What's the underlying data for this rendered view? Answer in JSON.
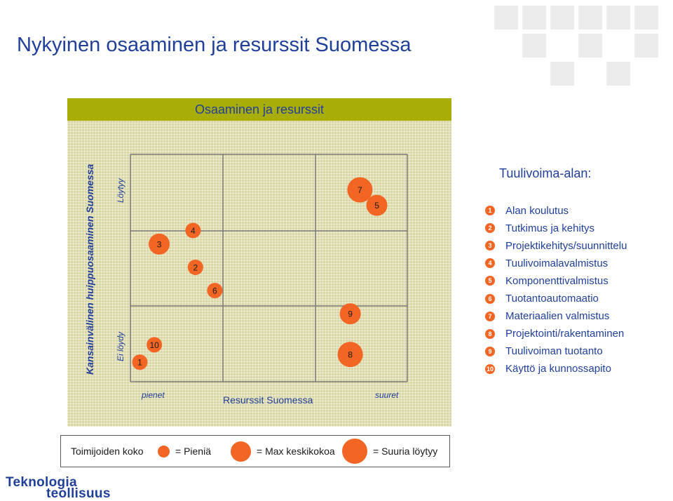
{
  "page": {
    "title": "Nykyinen osaaminen ja resurssit Suomessa"
  },
  "chart_data": {
    "type": "scatter",
    "title": "Osaaminen ja resurssit",
    "xlabel": "Resurssit Suomessa",
    "ylabel": "Kansainvälinen huippuosaaminen  Suomessa",
    "x_tick_labels": {
      "low": "pienet",
      "high": "suuret"
    },
    "y_tick_labels": {
      "low": "Ei löydy",
      "high": "Löytyy"
    },
    "xlim": [
      0,
      10
    ],
    "ylim": [
      0,
      10
    ],
    "grid": "3x3 quadrants",
    "points": [
      {
        "id": "1",
        "x": 0.1,
        "y": 0.5,
        "size": "small"
      },
      {
        "id": "2",
        "x": 2.4,
        "y": 5.4,
        "size": "small"
      },
      {
        "id": "3",
        "x": 0.9,
        "y": 6.6,
        "size": "medium"
      },
      {
        "id": "4",
        "x": 2.3,
        "y": 7.3,
        "size": "small"
      },
      {
        "id": "5",
        "x": 9.9,
        "y": 8.6,
        "size": "medium"
      },
      {
        "id": "6",
        "x": 3.2,
        "y": 4.2,
        "size": "small"
      },
      {
        "id": "7",
        "x": 9.2,
        "y": 9.4,
        "size": "large"
      },
      {
        "id": "8",
        "x": 8.8,
        "y": 0.9,
        "size": "large"
      },
      {
        "id": "9",
        "x": 8.8,
        "y": 3.0,
        "size": "medium"
      },
      {
        "id": "10",
        "x": 0.7,
        "y": 1.4,
        "size": "small"
      }
    ],
    "colors": {
      "point": "#f26522",
      "grid_line": "#7a7a7a",
      "panel": "#d9d6a4",
      "header": "#a9ad08"
    }
  },
  "legend": {
    "title": "Tuulivoima-alan:",
    "items": [
      {
        "num": "1",
        "label": "Alan koulutus"
      },
      {
        "num": "2",
        "label": "Tutkimus ja kehitys"
      },
      {
        "num": "3",
        "label": "Projektikehitys/suunnittelu"
      },
      {
        "num": "4",
        "label": "Tuulivoimalavalmistus"
      },
      {
        "num": "5",
        "label": "Komponenttivalmistus"
      },
      {
        "num": "6",
        "label": "Tuotantoautomaatio"
      },
      {
        "num": "7",
        "label": "Materiaalien valmistus"
      },
      {
        "num": "8",
        "label": "Projektointi/rakentaminen"
      },
      {
        "num": "9",
        "label": "Tuulivoiman tuotanto"
      },
      {
        "num": "10",
        "label": "Käyttö  ja kunnossapito"
      }
    ]
  },
  "size_key": {
    "label": "Toimijoiden koko",
    "small": "= Pieniä",
    "medium": "= Max keskikokoa",
    "large": "= Suuria löytyy"
  },
  "logo": {
    "line1": "Teknologia",
    "line2": "teollisuus"
  }
}
